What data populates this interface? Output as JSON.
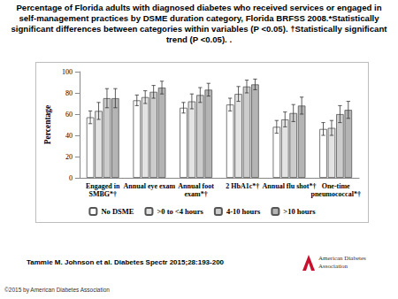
{
  "chart_data": {
    "type": "bar",
    "title": "Percentage of Florida adults with diagnosed diabetes who received services or engaged in self-management practices by DSME duration category, Florida BRFSS 2008.*Statistically significant differences between categories within variables (P <0.05). †Statistically significant trend (P <0.05). .",
    "y_label": "Percentage",
    "categories": [
      "Engaged in\nSMBG*†",
      "Annual eye exam",
      "Annual foot\nexam*†",
      "2 HbA1c*†",
      "Annual flu shot*†",
      "One-time\npneumococcal*†"
    ],
    "series": [
      {
        "name": "No DSME",
        "color": "#ffffff",
        "values": [
          57,
          73,
          66,
          69,
          48,
          46
        ],
        "errors": [
          6,
          5,
          5,
          6,
          6,
          6
        ]
      },
      {
        "name": ">0 to <4 hours",
        "color": "#e3e3e3",
        "values": [
          63,
          76,
          72,
          79,
          55,
          47
        ],
        "errors": [
          8,
          6,
          7,
          7,
          7,
          7
        ]
      },
      {
        "name": "4-10 hours",
        "color": "#cccccc",
        "values": [
          75,
          81,
          78,
          86,
          61,
          60
        ],
        "errors": [
          9,
          6,
          7,
          6,
          8,
          8
        ]
      },
      {
        "name": ">10 hours",
        "color": "#b4b4b4",
        "values": [
          75,
          85,
          83,
          88,
          68,
          64
        ],
        "errors": [
          9,
          6,
          6,
          5,
          8,
          8
        ]
      }
    ],
    "ylim": [
      0,
      100
    ],
    "yticks": [
      0,
      20,
      40,
      60,
      80,
      100
    ],
    "grid": false,
    "legend": "bottom"
  },
  "slide": {
    "citation": "Tammie M. Johnson et al. Diabetes Spectr 2015;28:193-200",
    "copyright": "©2015 by American Diabetes Association",
    "logo": "American Diabetes Association"
  }
}
